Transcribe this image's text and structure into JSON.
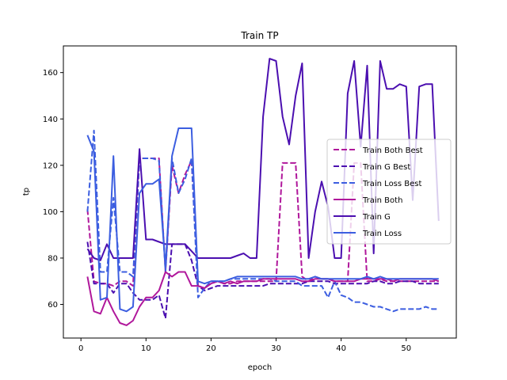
{
  "chart_data": {
    "type": "line",
    "title": "Train TP",
    "xlabel": "epoch",
    "ylabel": "tp",
    "xlim": [
      -2.7,
      57.7
    ],
    "ylim": [
      45.5,
      171.5
    ],
    "xticks": [
      0,
      10,
      20,
      30,
      40,
      50
    ],
    "yticks": [
      60,
      80,
      100,
      120,
      140,
      160
    ],
    "grid": false,
    "legend_position": "center-right",
    "series": [
      {
        "name": "Train Both Best",
        "color": "#b0179b",
        "dash": "dashed",
        "x": [
          1,
          2,
          3,
          4,
          5,
          6,
          7,
          8,
          9,
          10,
          11,
          12,
          13,
          14,
          15,
          16,
          17,
          18,
          19,
          20,
          21,
          22,
          23,
          24,
          25,
          26,
          27,
          28,
          29,
          30,
          31,
          32,
          33,
          34,
          35,
          36,
          37,
          38,
          39,
          40,
          41,
          42,
          43,
          44,
          45,
          46,
          47,
          48,
          49,
          50,
          51,
          52,
          53,
          54,
          55
        ],
        "y": [
          101,
          70,
          69,
          69,
          68,
          70,
          70,
          68,
          123,
          123,
          123,
          123,
          74,
          120,
          108,
          116,
          122,
          68,
          67,
          69,
          70,
          69,
          69,
          70,
          70,
          70,
          70,
          70,
          70,
          70,
          121,
          121,
          121,
          72,
          70,
          72,
          71,
          71,
          70,
          70,
          70,
          121,
          121,
          70,
          70,
          71,
          70,
          70,
          70,
          70,
          70,
          70,
          70,
          70,
          70
        ]
      },
      {
        "name": "Train G Best",
        "color": "#4b0fb0",
        "dash": "dashed",
        "x": [
          1,
          2,
          3,
          4,
          5,
          6,
          7,
          8,
          9,
          10,
          11,
          12,
          13,
          14,
          15,
          16,
          17,
          18,
          19,
          20,
          21,
          22,
          23,
          24,
          25,
          26,
          27,
          28,
          29,
          30,
          31,
          32,
          33,
          34,
          35,
          36,
          37,
          38,
          39,
          40,
          41,
          42,
          43,
          44,
          45,
          46,
          47,
          48,
          49,
          50,
          51,
          52,
          53,
          54,
          55
        ],
        "y": [
          87,
          69,
          69,
          69,
          65,
          69,
          69,
          65,
          62,
          62,
          62,
          64,
          54,
          86,
          86,
          86,
          79,
          68,
          66,
          67,
          68,
          68,
          68,
          68,
          68,
          68,
          68,
          68,
          69,
          69,
          69,
          69,
          69,
          69,
          70,
          70,
          70,
          70,
          69,
          69,
          69,
          69,
          69,
          69,
          70,
          70,
          69,
          69,
          70,
          70,
          70,
          69,
          69,
          69,
          69
        ]
      },
      {
        "name": "Train Loss Best",
        "color": "#3c5ee0",
        "dash": "dashed",
        "x": [
          1,
          2,
          3,
          4,
          5,
          6,
          7,
          8,
          9,
          10,
          11,
          12,
          13,
          14,
          15,
          16,
          17,
          18,
          19,
          20,
          21,
          22,
          23,
          24,
          25,
          26,
          27,
          28,
          29,
          30,
          31,
          32,
          33,
          34,
          35,
          36,
          37,
          38,
          39,
          40,
          41,
          42,
          43,
          44,
          45,
          46,
          47,
          48,
          49,
          50,
          51,
          52,
          53,
          54,
          55
        ],
        "y": [
          100,
          135,
          74,
          74,
          106,
          74,
          74,
          72,
          123,
          123,
          123,
          122,
          74,
          123,
          108,
          114,
          123,
          63,
          67,
          70,
          70,
          70,
          71,
          71,
          71,
          71,
          71,
          71,
          71,
          70,
          70,
          70,
          70,
          68,
          68,
          68,
          68,
          63,
          70,
          64,
          63,
          61,
          61,
          60,
          59,
          59,
          58,
          57,
          58,
          58,
          58,
          58,
          59,
          58,
          58
        ]
      },
      {
        "name": "Train Both",
        "color": "#b0179b",
        "dash": "solid",
        "x": [
          1,
          2,
          3,
          4,
          5,
          6,
          7,
          8,
          9,
          10,
          11,
          12,
          13,
          14,
          15,
          16,
          17,
          18,
          19,
          20,
          21,
          22,
          23,
          24,
          25,
          26,
          27,
          28,
          29,
          30,
          31,
          32,
          33,
          34,
          35,
          36,
          37,
          38,
          39,
          40,
          41,
          42,
          43,
          44,
          45,
          46,
          47,
          48,
          49,
          50,
          51,
          52,
          53,
          54,
          55
        ],
        "y": [
          72,
          57,
          56,
          63,
          57,
          52,
          51,
          53,
          59,
          63,
          63,
          66,
          74,
          72,
          74,
          74,
          68,
          68,
          67,
          69,
          70,
          69,
          70,
          69,
          70,
          70,
          70,
          71,
          71,
          71,
          71,
          71,
          71,
          70,
          70,
          71,
          71,
          71,
          70,
          70,
          70,
          70,
          71,
          71,
          71,
          71,
          71,
          70,
          71,
          71,
          71,
          71,
          71,
          71,
          70
        ]
      },
      {
        "name": "Train G",
        "color": "#4b0fb0",
        "dash": "solid",
        "x": [
          1,
          2,
          3,
          4,
          5,
          6,
          7,
          8,
          9,
          10,
          11,
          12,
          13,
          14,
          15,
          16,
          17,
          18,
          19,
          20,
          21,
          22,
          23,
          24,
          25,
          26,
          27,
          28,
          29,
          30,
          31,
          32,
          33,
          34,
          35,
          36,
          37,
          38,
          39,
          40,
          41,
          42,
          43,
          44,
          45,
          46,
          47,
          48,
          49,
          50,
          51,
          52,
          53,
          54,
          55
        ],
        "y": [
          84,
          80,
          79,
          86,
          80,
          80,
          80,
          80,
          127,
          88,
          88,
          87,
          86,
          86,
          86,
          86,
          83,
          80,
          80,
          80,
          80,
          80,
          80,
          81,
          82,
          80,
          80,
          141,
          166,
          165,
          141,
          129,
          150,
          164,
          80,
          100,
          113,
          102,
          80,
          80,
          151,
          165,
          128,
          163,
          82,
          165,
          153,
          153,
          155,
          154,
          105,
          154,
          155,
          155,
          96
        ]
      },
      {
        "name": "Train Loss",
        "color": "#3c5ee0",
        "dash": "solid",
        "x": [
          1,
          2,
          3,
          4,
          5,
          6,
          7,
          8,
          9,
          10,
          11,
          12,
          13,
          14,
          15,
          16,
          17,
          18,
          19,
          20,
          21,
          22,
          23,
          24,
          25,
          26,
          27,
          28,
          29,
          30,
          31,
          32,
          33,
          34,
          35,
          36,
          37,
          38,
          39,
          40,
          41,
          42,
          43,
          44,
          45,
          46,
          47,
          48,
          49,
          50,
          51,
          52,
          53,
          54,
          55
        ],
        "y": [
          133,
          126,
          62,
          63,
          124,
          58,
          57,
          59,
          108,
          112,
          112,
          114,
          76,
          124,
          136,
          136,
          136,
          70,
          69,
          70,
          70,
          70,
          71,
          72,
          72,
          72,
          72,
          72,
          72,
          72,
          72,
          72,
          72,
          71,
          71,
          72,
          71,
          71,
          71,
          71,
          71,
          71,
          71,
          72,
          71,
          72,
          71,
          71,
          71,
          71,
          71,
          71,
          71,
          71,
          71
        ]
      }
    ]
  }
}
